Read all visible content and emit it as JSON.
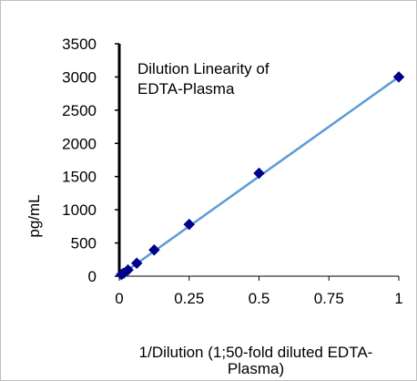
{
  "chart_data": {
    "type": "scatter",
    "title_lines": [
      "Dilution Linearity of",
      "EDTA-Plasma"
    ],
    "xlabel_lines": [
      "1/Dilution (1;50-fold diluted EDTA-",
      "Plasma)"
    ],
    "ylabel": "pg/mL",
    "xlim": [
      0,
      1
    ],
    "ylim": [
      0,
      3500
    ],
    "x_ticks": [
      0,
      0.25,
      0.5,
      0.75,
      1
    ],
    "x_tick_labels": [
      "0",
      "0.25",
      "0.5",
      "0.75",
      "1"
    ],
    "y_ticks": [
      0,
      500,
      1000,
      1500,
      2000,
      2500,
      3000,
      3500
    ],
    "y_tick_labels": [
      "0",
      "500",
      "1000",
      "1500",
      "2000",
      "2500",
      "3000",
      "3500"
    ],
    "grid": false,
    "legend": "none",
    "series": [
      {
        "x": [
          0.0078125,
          0.015625,
          0.03125,
          0.0625,
          0.125,
          0.25,
          0.5,
          1
        ],
        "y": [
          25,
          45,
          95,
          195,
          395,
          780,
          1550,
          3000
        ],
        "marker": "diamond",
        "marker_color": "#00008b"
      }
    ],
    "trendline": {
      "x": [
        0,
        1
      ],
      "y": [
        2,
        3000
      ],
      "color": "#5b9bd5"
    }
  }
}
